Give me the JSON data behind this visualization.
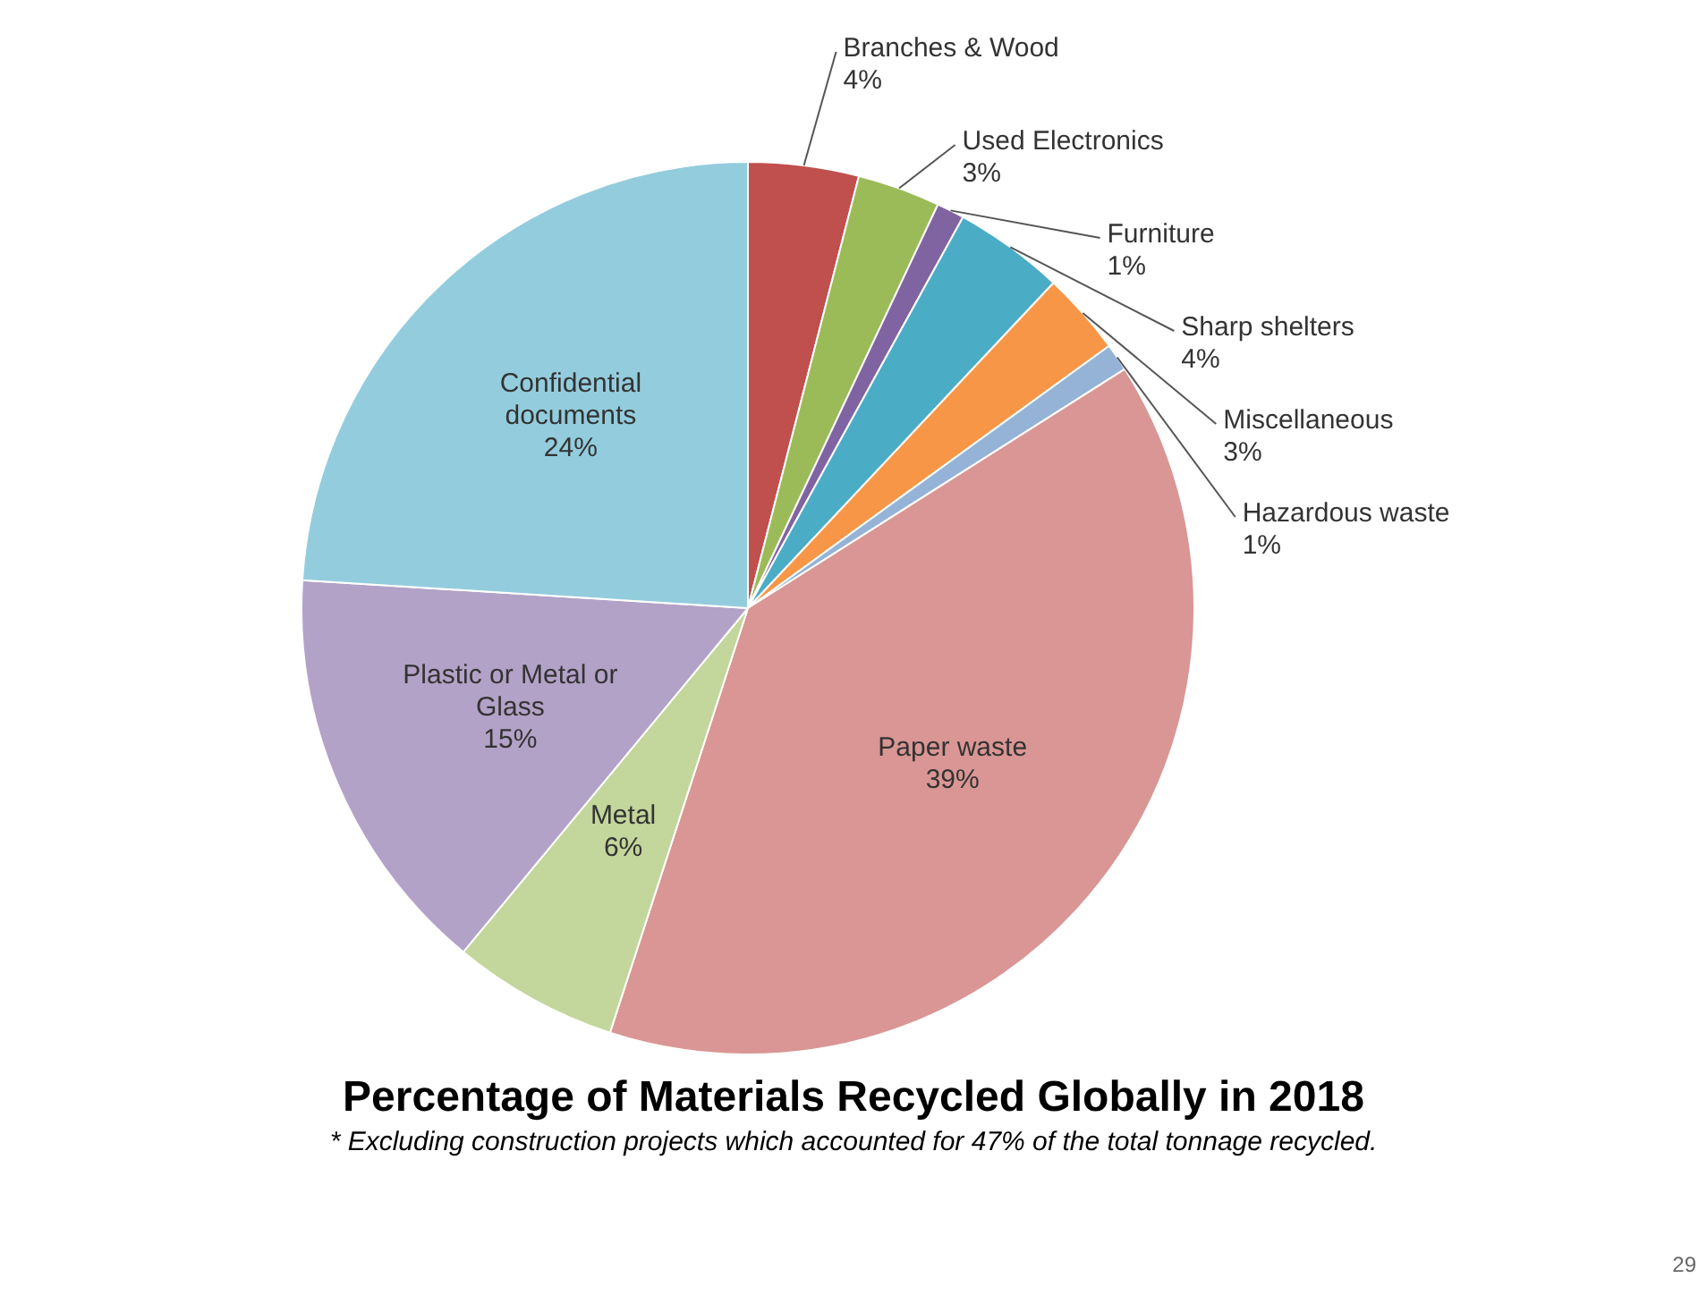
{
  "chart_data": {
    "type": "pie",
    "title": "Percentage of Materials Recycled Globally in 2018",
    "categories": [
      "Branches & Wood",
      "Used Electronics",
      "Furniture",
      "Sharp shelters",
      "Miscellaneous",
      "Hazardous waste",
      "Paper waste",
      "Metal",
      "Plastic or Metal or Glass",
      "Confidential documents"
    ],
    "values": [
      4,
      3,
      1,
      4,
      3,
      1,
      39,
      6,
      15,
      24
    ],
    "colors": [
      "#c0504d",
      "#9bbb59",
      "#8064a2",
      "#4bacc6",
      "#f79646",
      "#95b3d7",
      "#d99694",
      "#c3d69b",
      "#b3a2c7",
      "#93cddd"
    ],
    "value_labels": [
      "4%",
      "3%",
      "1%",
      "4%",
      "3%",
      "1%",
      "39%",
      "6%",
      "15%",
      "24%"
    ],
    "legend": false,
    "annotations": [
      "* Excluding construction projects which accounted for 47% of the total tonnage recycled.",
      "29"
    ]
  }
}
